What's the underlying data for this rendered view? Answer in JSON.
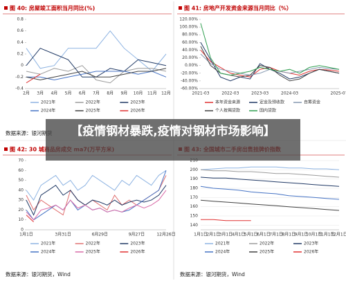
{
  "banner": "【疫情钢材暴跌,疫情对钢材市场影响】",
  "chart_data": [
    {
      "type": "line",
      "title": "图 40: 房屋竣工面积当月同比(%)",
      "source": "数据来源：银河期货",
      "categories": [
        "2月",
        "3月",
        "4月",
        "5月",
        "6月",
        "7月",
        "8月",
        "9月",
        "10月",
        "11月",
        "12月"
      ],
      "ylim": [
        -0.4,
        0.8
      ],
      "yticks": [
        -0.4,
        -0.2,
        0,
        0.2,
        0.4,
        0.6,
        0.8
      ],
      "grid": false,
      "series": [
        {
          "name": "2021年",
          "color": "#8db3e2",
          "values": [
            0.3,
            -0.05,
            0.0,
            0.3,
            0.3,
            0.3,
            0.6,
            0.3,
            0.1,
            -0.1,
            0.2
          ]
        },
        {
          "name": "2022年",
          "color": "#9a9a9a",
          "values": [
            -0.1,
            -0.15,
            -0.05,
            -0.1,
            0.0,
            -0.25,
            -0.3,
            -0.1,
            -0.05,
            -0.05,
            -0.1
          ]
        },
        {
          "name": "2023年",
          "color": "#1f3864",
          "values": [
            0.0,
            0.3,
            0.2,
            0.1,
            -0.2,
            -0.2,
            -0.05,
            -0.1,
            0.1,
            0.05,
            0.0
          ]
        },
        {
          "name": "2024年",
          "color": "#4472c4",
          "values": [
            -0.2,
            -0.2,
            -0.25,
            -0.2,
            -0.15,
            -0.1,
            -0.1,
            -0.1,
            -0.15,
            -0.1,
            -0.2
          ]
        },
        {
          "name": "2025年",
          "color": "#404040",
          "values": [
            -0.2,
            -0.25,
            -0.2,
            -0.15,
            -0.1,
            -0.2,
            -0.2,
            -0.15,
            -0.1,
            -0.1,
            -0.05
          ]
        },
        {
          "name": "2026年",
          "color": "#e03030",
          "values": [
            -0.3,
            -0.15,
            null,
            null,
            null,
            null,
            null,
            null,
            null,
            null,
            null
          ]
        }
      ]
    },
    {
      "type": "line",
      "title": "图 41: 房地产开发资金来源当月同比（%）",
      "categories": [
        "2021-03",
        null,
        null,
        "2022-03",
        null,
        null,
        "2023-03",
        null,
        null,
        "2024-03",
        null,
        null,
        null,
        null,
        "2025-07"
      ],
      "ylim": [
        -60,
        120
      ],
      "yticks": [
        {
          "value": -60,
          "label": "-60.00%"
        },
        {
          "value": -40,
          "label": "-40.00%"
        },
        {
          "value": -20,
          "label": "-20.00%"
        },
        {
          "value": 0,
          "label": "0.00%"
        },
        {
          "value": 20,
          "label": "20.00%"
        },
        {
          "value": 40,
          "label": "40.00%"
        },
        {
          "value": 60,
          "label": "60.00%"
        },
        {
          "value": 80,
          "label": "80.00%"
        },
        {
          "value": 100,
          "label": "100.00%"
        },
        {
          "value": 120,
          "label": "120.00%"
        }
      ],
      "grid": false,
      "series": [
        {
          "name": "本年资金来源",
          "color": "#e03030",
          "values": [
            40,
            10,
            -5,
            -20,
            -25,
            -30,
            -10,
            -5,
            -15,
            -20,
            -25,
            -15,
            -10,
            -12,
            -15
          ]
        },
        {
          "name": "定金及预收款",
          "color": "#1f3864",
          "values": [
            60,
            15,
            -30,
            -40,
            -30,
            -35,
            5,
            -10,
            -20,
            -35,
            -30,
            -20,
            -10,
            -15,
            -20
          ]
        },
        {
          "name": "自筹资金",
          "color": "#8497b0",
          "values": [
            30,
            5,
            -10,
            -15,
            -20,
            -25,
            -20,
            -10,
            -15,
            -20,
            -15,
            -10,
            -5,
            -8,
            -10
          ]
        },
        {
          "name": "个人按揭贷款",
          "color": "#404040",
          "values": [
            50,
            0,
            -20,
            -25,
            -30,
            -25,
            0,
            -5,
            -25,
            -40,
            -35,
            -20,
            -10,
            -15,
            -20
          ]
        },
        {
          "name": "国内贷款",
          "color": "#2e9e4f",
          "values": [
            110,
            20,
            -20,
            -25,
            -20,
            -15,
            -5,
            -10,
            -15,
            -10,
            -20,
            -5,
            0,
            -5,
            -10
          ]
        }
      ]
    },
    {
      "type": "line",
      "title": "图 42: 30 城商品房成交 ma7(万平方米)",
      "source": "数据来源：银河期货，Wind",
      "categories": [
        "1月1日",
        null,
        null,
        null,
        null,
        "3月31日",
        null,
        null,
        null,
        null,
        "6月29日",
        null,
        null,
        null,
        null,
        "9月27日",
        null,
        null,
        null,
        "12月26日"
      ],
      "ylim": [
        0,
        70
      ],
      "yticks": [
        0,
        10,
        20,
        30,
        40,
        50,
        60,
        70
      ],
      "grid": false,
      "series": [
        {
          "name": "2021年",
          "color": "#8db3e2",
          "values": [
            40,
            30,
            45,
            50,
            55,
            45,
            50,
            40,
            45,
            55,
            50,
            45,
            40,
            50,
            45,
            55,
            50,
            45,
            55,
            60
          ]
        },
        {
          "name": "2022年",
          "color": "#e07070",
          "values": [
            35,
            20,
            30,
            25,
            20,
            15,
            40,
            30,
            25,
            30,
            25,
            20,
            35,
            25,
            30,
            25,
            30,
            35,
            40,
            55
          ]
        },
        {
          "name": "2023年",
          "color": "#1f3864",
          "values": [
            30,
            15,
            35,
            40,
            45,
            35,
            40,
            30,
            25,
            30,
            28,
            25,
            30,
            25,
            28,
            30,
            28,
            30,
            35,
            45
          ]
        },
        {
          "name": "2024年",
          "color": "#4472c4",
          "values": [
            20,
            10,
            15,
            20,
            25,
            20,
            30,
            20,
            25,
            20,
            22,
            18,
            20,
            18,
            20,
            25,
            30,
            35,
            40,
            60
          ]
        },
        {
          "name": "2025年",
          "color": "#d96aa7",
          "values": [
            18,
            10,
            20,
            22,
            25,
            20,
            30,
            22,
            25,
            20,
            22,
            18,
            20,
            18,
            22,
            25,
            22,
            25,
            30,
            40
          ]
        },
        {
          "name": "2026年",
          "color": "#e03030",
          "values": [
            15,
            8,
            null,
            null,
            null,
            null,
            null,
            null,
            null,
            null,
            null,
            null,
            null,
            null,
            null,
            null,
            null,
            null,
            null,
            null
          ]
        }
      ]
    },
    {
      "type": "line",
      "title": "图 43: 全国城市二手房出售挂牌价指数",
      "source": "数据来源：银河期货，Wind",
      "categories": [
        "1月1日",
        "2月1日",
        "3月1日",
        "4月1日",
        "5月1日",
        "6月1日",
        "7月1日",
        "8月1日",
        "9月1日",
        "10月1日",
        "11月1日",
        "12月1日"
      ],
      "ylim": [
        135,
        210
      ],
      "yticks": [
        140,
        150,
        160,
        170,
        180,
        190,
        200,
        210
      ],
      "grid": true,
      "series": [
        {
          "name": "2021年",
          "color": "#8db3e2",
          "values": [
            200,
            201,
            202,
            202,
            203,
            203,
            203,
            202,
            202,
            201,
            201,
            200
          ]
        },
        {
          "name": "2022年",
          "color": "#9a9a9a",
          "values": [
            200,
            199,
            199,
            198,
            198,
            197,
            196,
            196,
            195,
            194,
            193,
            192
          ]
        },
        {
          "name": "2023年",
          "color": "#1f3864",
          "values": [
            192,
            191,
            191,
            190,
            189,
            188,
            187,
            186,
            185,
            184,
            183,
            182
          ]
        },
        {
          "name": "2024年",
          "color": "#4472c4",
          "values": [
            182,
            180,
            179,
            178,
            176,
            175,
            174,
            172,
            171,
            170,
            169,
            168
          ]
        },
        {
          "name": "2025年",
          "color": "#404040",
          "values": [
            167,
            166,
            165,
            164,
            163,
            162,
            161,
            160,
            159,
            158,
            157,
            156
          ]
        },
        {
          "name": "2026年",
          "color": "#e03030",
          "values": [
            146,
            146,
            145,
            145,
            145,
            null,
            null,
            null,
            null,
            null,
            null,
            null
          ]
        }
      ]
    }
  ]
}
